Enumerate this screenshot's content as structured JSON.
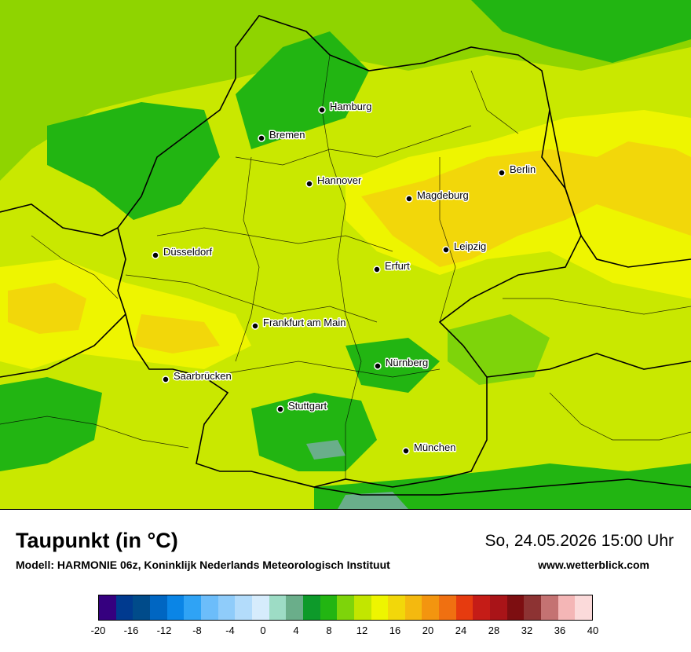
{
  "title": "Taupunkt (in °C)",
  "model": "Modell: HARMONIE 06z, Koninklijk Nederlands Meteorologisch Instituut",
  "datetime": "So, 24.05.2026 15:00 Uhr",
  "website": "www.wetterblick.com",
  "legend": {
    "colors": [
      "#35007f",
      "#003a8f",
      "#004b8a",
      "#0066c2",
      "#0a85e6",
      "#2fa3f5",
      "#6cbdfa",
      "#8fccfa",
      "#b3dcfb",
      "#d6ecfc",
      "#9ddcc5",
      "#6aae8a",
      "#0d9a2a",
      "#22b512",
      "#7ed40a",
      "#c2e600",
      "#eef500",
      "#f2d70a",
      "#f4b90f",
      "#f3950f",
      "#f07011",
      "#e63b0f",
      "#c51c17",
      "#a91418",
      "#7d0e11",
      "#8d3333",
      "#c47272",
      "#f4b6b6",
      "#fbdada"
    ],
    "ticks": [
      "-20",
      "-16",
      "-12",
      "-8",
      "-4",
      "0",
      "4",
      "8",
      "12",
      "16",
      "20",
      "24",
      "28",
      "32",
      "36",
      "40"
    ]
  },
  "cities": [
    {
      "name": "Hamburg"
    },
    {
      "name": "Bremen"
    },
    {
      "name": "Hannover"
    },
    {
      "name": "Berlin"
    },
    {
      "name": "Magdeburg"
    },
    {
      "name": "Leipzig"
    },
    {
      "name": "Düsseldorf"
    },
    {
      "name": "Erfurt"
    },
    {
      "name": "Frankfurt am Main"
    },
    {
      "name": "Nürnberg"
    },
    {
      "name": "Saarbrücken"
    },
    {
      "name": "Stuttgart"
    },
    {
      "name": "München"
    }
  ]
}
